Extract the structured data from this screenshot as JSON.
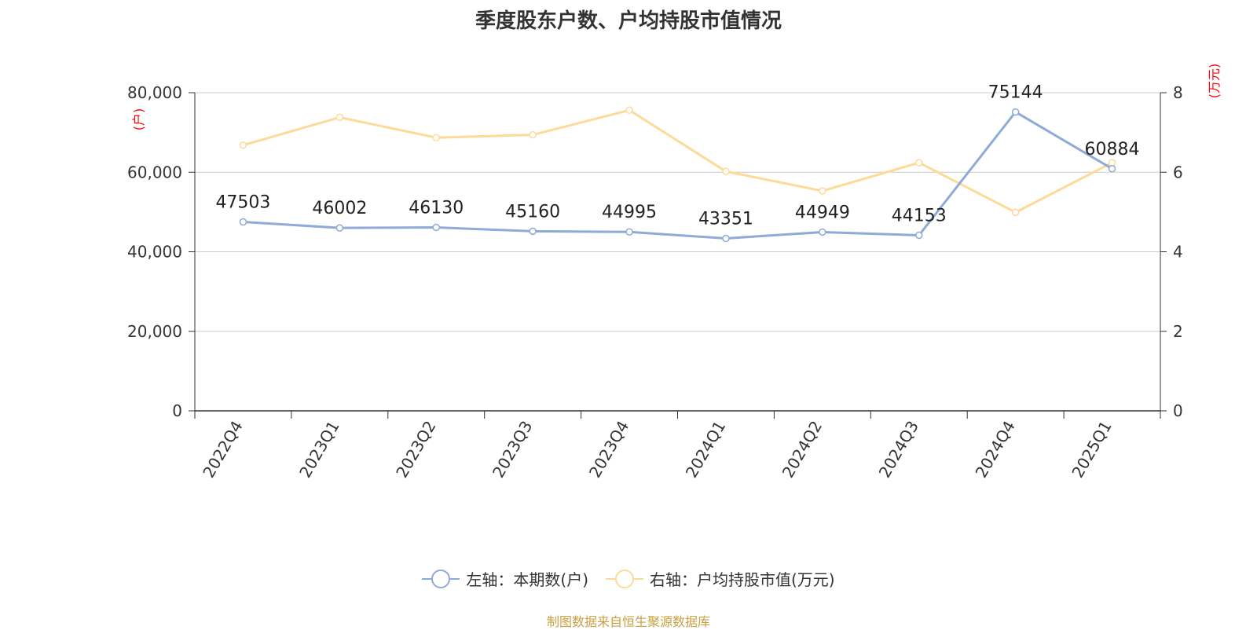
{
  "title": "季度股东户数、户均持股市值情况",
  "source": "制图数据来自恒生聚源数据库",
  "legend": {
    "left_label": "左轴：本期数(户)",
    "right_label": "右轴：户均持股市值(万元)"
  },
  "colors": {
    "series_left": "#8eaad6",
    "series_right": "#fcdb98",
    "unit_label": "#ff0000",
    "grid": "#cccccc",
    "axis": "#333333",
    "source": "#c8a040"
  },
  "chart_data": {
    "type": "line",
    "title": "季度股东户数、户均持股市值情况",
    "categories": [
      "2022Q4",
      "2023Q1",
      "2023Q2",
      "2023Q3",
      "2023Q4",
      "2024Q1",
      "2024Q2",
      "2024Q3",
      "2024Q4",
      "2025Q1"
    ],
    "y_left": {
      "label": "(户)",
      "range": [
        0,
        80000
      ],
      "ticks": [
        "0",
        "20,000",
        "40,000",
        "60,000",
        "80,000"
      ]
    },
    "y_right": {
      "label": "(万元)",
      "range": [
        0,
        8
      ],
      "ticks": [
        "0",
        "2",
        "4",
        "6",
        "8"
      ]
    },
    "grid": true,
    "legend_position": "bottom",
    "series": [
      {
        "name": "左轴：本期数(户)",
        "axis": "left",
        "values": [
          47503,
          46002,
          46130,
          45160,
          44995,
          43351,
          44949,
          44153,
          75144,
          60884
        ],
        "labels": [
          "47503",
          "46002",
          "46130",
          "45160",
          "44995",
          "43351",
          "44949",
          "44153",
          "75144",
          "60884"
        ]
      },
      {
        "name": "右轴：户均持股市值(万元)",
        "axis": "right",
        "values": [
          6.68,
          7.38,
          6.87,
          6.94,
          7.56,
          6.02,
          5.53,
          6.24,
          4.99,
          6.24
        ]
      }
    ]
  }
}
